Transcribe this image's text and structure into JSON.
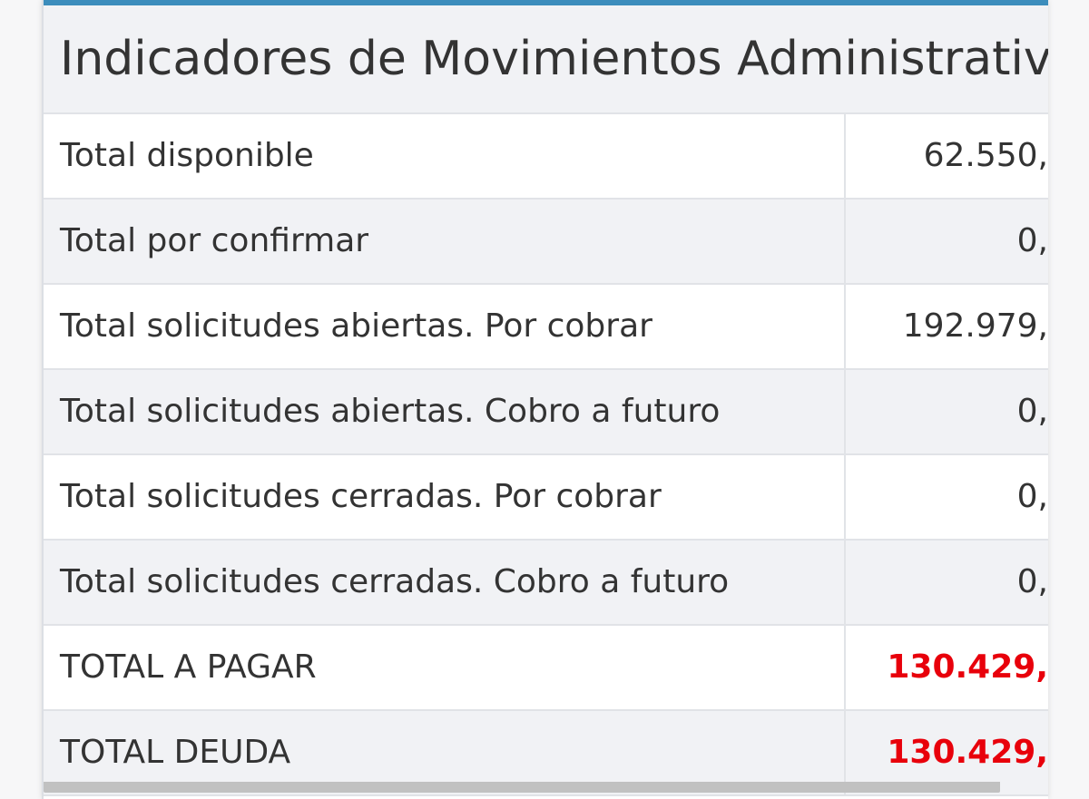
{
  "panel": {
    "title": "Indicadores de Movimientos Administrativo",
    "accent_color": "#3c8dbc",
    "total_color": "#e8000b"
  },
  "rows": [
    {
      "label": "Total disponible",
      "value": "62.550,",
      "emphasis": false
    },
    {
      "label": "Total por confirmar",
      "value": "0,",
      "emphasis": false
    },
    {
      "label": "Total solicitudes abiertas. Por cobrar",
      "value": "192.979,",
      "emphasis": false
    },
    {
      "label": "Total solicitudes abiertas. Cobro a futuro",
      "value": "0,",
      "emphasis": false
    },
    {
      "label": "Total solicitudes cerradas. Por cobrar",
      "value": "0,",
      "emphasis": false
    },
    {
      "label": "Total solicitudes cerradas. Cobro a futuro",
      "value": "0,",
      "emphasis": false
    },
    {
      "label": "TOTAL A PAGAR",
      "value": "130.429,",
      "emphasis": true
    },
    {
      "label": "TOTAL DEUDA",
      "value": "130.429,",
      "emphasis": true
    }
  ]
}
